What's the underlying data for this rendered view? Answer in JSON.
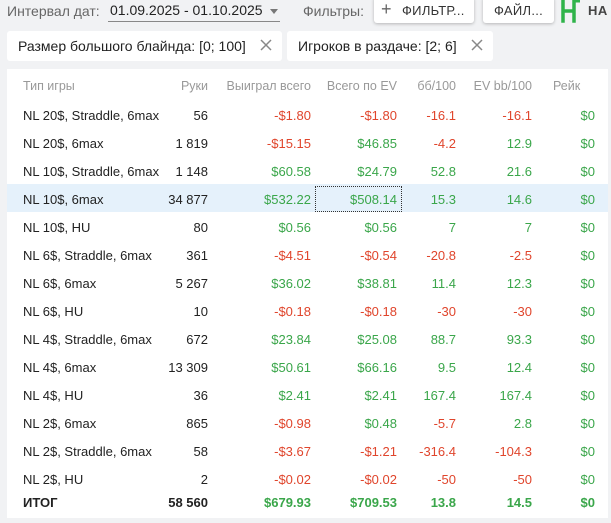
{
  "toolbar": {
    "date_label": "Интервал дат:",
    "date_value": "01.09.2025 - 01.10.2025",
    "filters_label": "Фильтры:",
    "filters_button": "ФИЛЬТР...",
    "files_button": "ФАЙЛ...",
    "app_name": "НА"
  },
  "chips": [
    {
      "label": "Размер большого блайнда: [0; 100]"
    },
    {
      "label": "Игроков в раздаче: [2; 6]"
    }
  ],
  "table": {
    "headers": [
      "Тип игры",
      "Руки",
      "Выиграл всего",
      "Всего по EV",
      "бб/100",
      "EV bb/100",
      "Рейк"
    ],
    "rows": [
      {
        "name": "NL 20$, Straddle, 6max",
        "hands": "56",
        "won": "-$1.80",
        "ev": "-$1.80",
        "bb": "-16.1",
        "evbb": "-16.1",
        "rake": "$0"
      },
      {
        "name": "NL 20$, 6max",
        "hands": "1 819",
        "won": "-$15.15",
        "ev": "$46.85",
        "bb": "-4.2",
        "evbb": "12.9",
        "rake": "$0"
      },
      {
        "name": "NL 10$, Straddle, 6max",
        "hands": "1 148",
        "won": "$60.58",
        "ev": "$24.79",
        "bb": "52.8",
        "evbb": "21.6",
        "rake": "$0"
      },
      {
        "name": "NL 10$, 6max",
        "hands": "34 877",
        "won": "$532.22",
        "ev": "$508.14",
        "bb": "15.3",
        "evbb": "14.6",
        "rake": "$0"
      },
      {
        "name": "NL 10$, HU",
        "hands": "80",
        "won": "$0.56",
        "ev": "$0.56",
        "bb": "7",
        "evbb": "7",
        "rake": "$0"
      },
      {
        "name": "NL 6$, Straddle, 6max",
        "hands": "361",
        "won": "-$4.51",
        "ev": "-$0.54",
        "bb": "-20.8",
        "evbb": "-2.5",
        "rake": "$0"
      },
      {
        "name": "NL 6$, 6max",
        "hands": "5 267",
        "won": "$36.02",
        "ev": "$38.81",
        "bb": "11.4",
        "evbb": "12.3",
        "rake": "$0"
      },
      {
        "name": "NL 6$, HU",
        "hands": "10",
        "won": "-$0.18",
        "ev": "-$0.18",
        "bb": "-30",
        "evbb": "-30",
        "rake": "$0"
      },
      {
        "name": "NL 4$, Straddle, 6max",
        "hands": "672",
        "won": "$23.84",
        "ev": "$25.08",
        "bb": "88.7",
        "evbb": "93.3",
        "rake": "$0"
      },
      {
        "name": "NL 4$, 6max",
        "hands": "13 309",
        "won": "$50.61",
        "ev": "$66.16",
        "bb": "9.5",
        "evbb": "12.4",
        "rake": "$0"
      },
      {
        "name": "NL 4$, HU",
        "hands": "36",
        "won": "$2.41",
        "ev": "$2.41",
        "bb": "167.4",
        "evbb": "167.4",
        "rake": "$0"
      },
      {
        "name": "NL 2$, 6max",
        "hands": "865",
        "won": "-$0.98",
        "ev": "$0.48",
        "bb": "-5.7",
        "evbb": "2.8",
        "rake": "$0"
      },
      {
        "name": "NL 2$, Straddle, 6max",
        "hands": "58",
        "won": "-$3.67",
        "ev": "-$1.21",
        "bb": "-316.4",
        "evbb": "-104.3",
        "rake": "$0"
      },
      {
        "name": "NL 2$, HU",
        "hands": "2",
        "won": "-$0.02",
        "ev": "-$0.02",
        "bb": "-50",
        "evbb": "-50",
        "rake": "$0"
      }
    ],
    "total": {
      "name": "ИТОГ",
      "hands": "58 560",
      "won": "$679.93",
      "ev": "$709.53",
      "bb": "13.8",
      "evbb": "14.5",
      "rake": "$0"
    }
  },
  "colors": {
    "positive": "#3aa64a",
    "negative": "#e0452c",
    "highlight_row": "#e5f1fb",
    "logo": "#2fb34a"
  }
}
